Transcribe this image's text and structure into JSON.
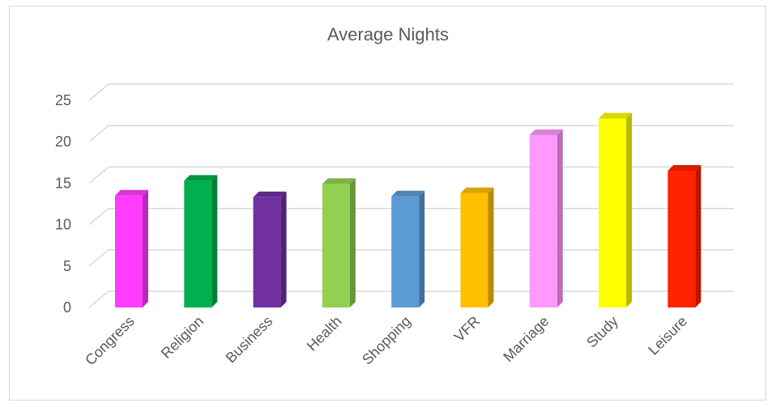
{
  "chart_data": {
    "type": "bar",
    "title": "Average Nights",
    "xlabel": "",
    "ylabel": "",
    "ylim": [
      0,
      25
    ],
    "yticks": [
      0,
      5,
      10,
      15,
      20,
      25
    ],
    "grid": true,
    "legend": "none",
    "categories": [
      "Congress",
      "Religion",
      "Business",
      "Health",
      "Shopping",
      "VFR",
      "Marriage",
      "Study",
      "Leisure"
    ],
    "values": [
      13.5,
      15.3,
      13.3,
      14.9,
      13.4,
      13.8,
      20.8,
      22.8,
      16.5
    ],
    "colors": [
      "#ff3bff",
      "#00b050",
      "#7030a0",
      "#92d050",
      "#5b9bd5",
      "#ffc000",
      "#ff99ff",
      "#ffff00",
      "#ff2200"
    ]
  }
}
